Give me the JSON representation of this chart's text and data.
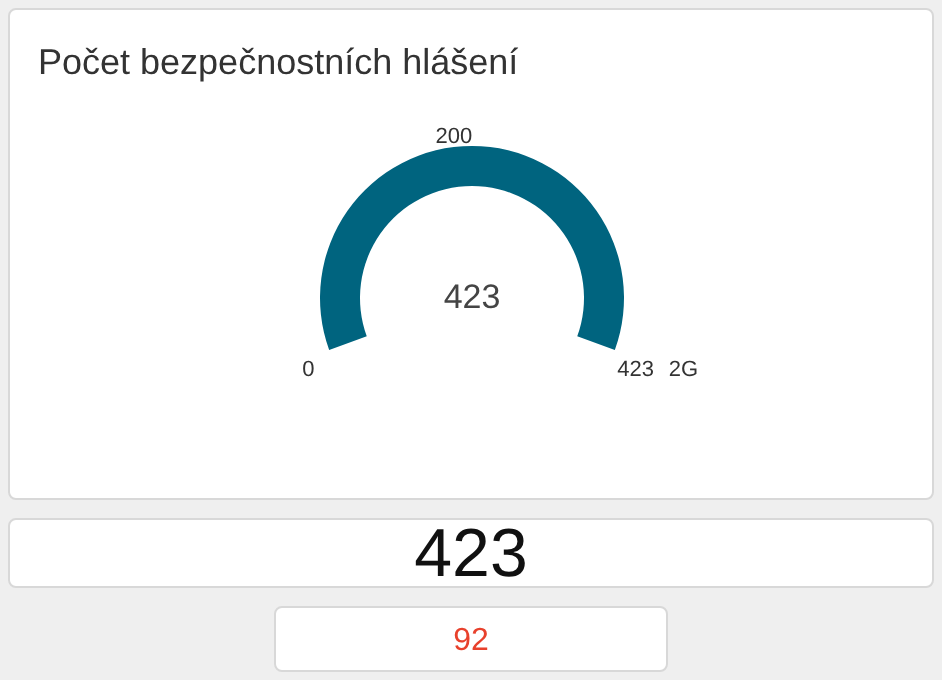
{
  "chart_data": {
    "type": "pie",
    "title": "Počet bezpečnostních hlášení",
    "categories": [
      null
    ],
    "values": [
      423
    ],
    "colors": [
      "#00647f"
    ],
    "data_labels": true,
    "annotations": [
      "0",
      "200",
      "423",
      "2G",
      "423",
      "92"
    ]
  }
}
